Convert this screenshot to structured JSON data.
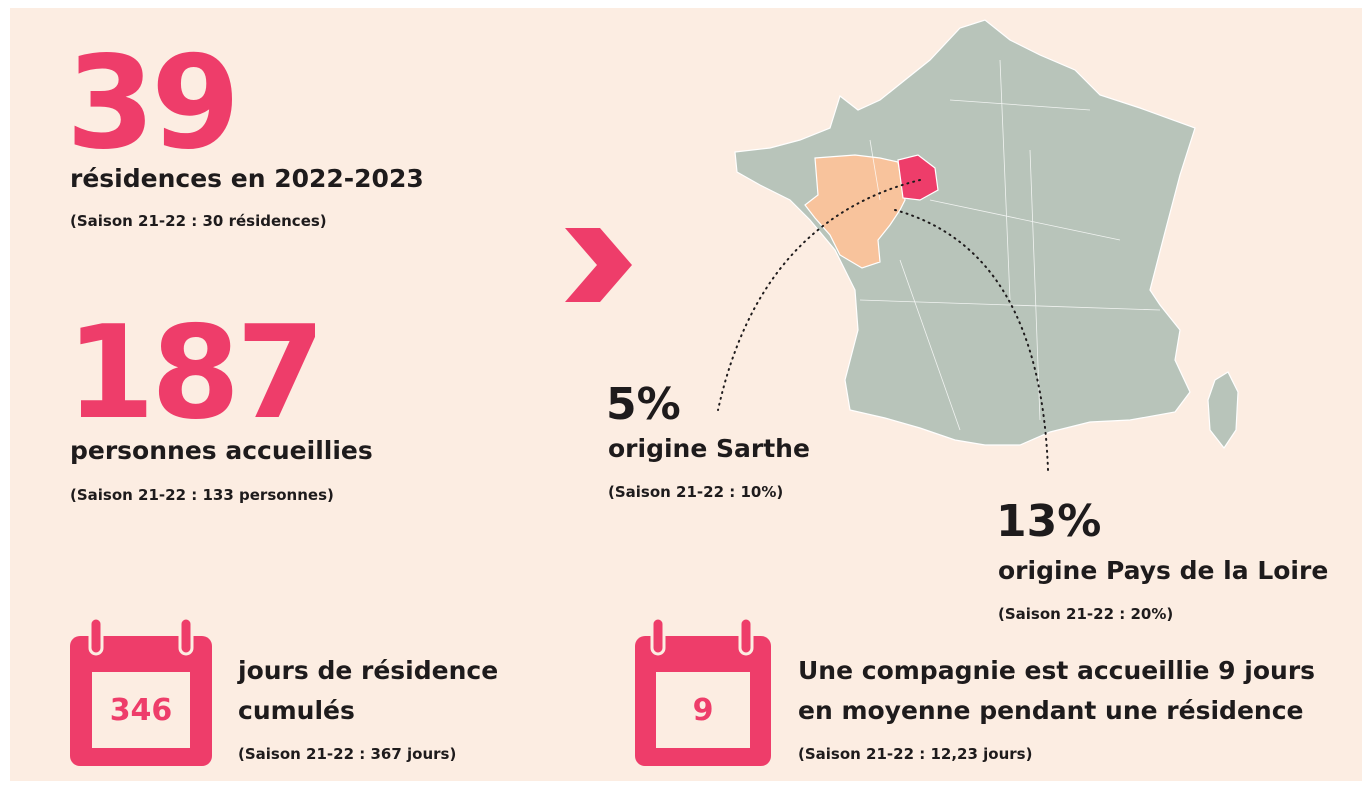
{
  "stats": {
    "residences": {
      "number": "39",
      "label": "résidences en 2022-2023",
      "previous": "(Saison 21-22 : 30 résidences)"
    },
    "personnes": {
      "number": "187",
      "label": "personnes accueillies",
      "previous": "(Saison 21-22 : 133 personnes)"
    },
    "sarthe": {
      "number": "5%",
      "label": "origine Sarthe",
      "previous": "(Saison 21-22 : 10%)"
    },
    "pays_de_la_loire": {
      "number": "13%",
      "label": "origine Pays de la Loire",
      "previous": "(Saison 21-22 : 20%)"
    },
    "jours": {
      "number": "346",
      "lines": [
        "jours de résidence",
        "cumulés"
      ],
      "previous": "(Saison 21-22 : 367 jours)"
    },
    "moyenne": {
      "number": "9",
      "lines": [
        "Une compagnie est accueillie 9 jours",
        "en moyenne pendant une résidence"
      ],
      "previous": "(Saison 21-22 : 12,23 jours)"
    }
  }
}
